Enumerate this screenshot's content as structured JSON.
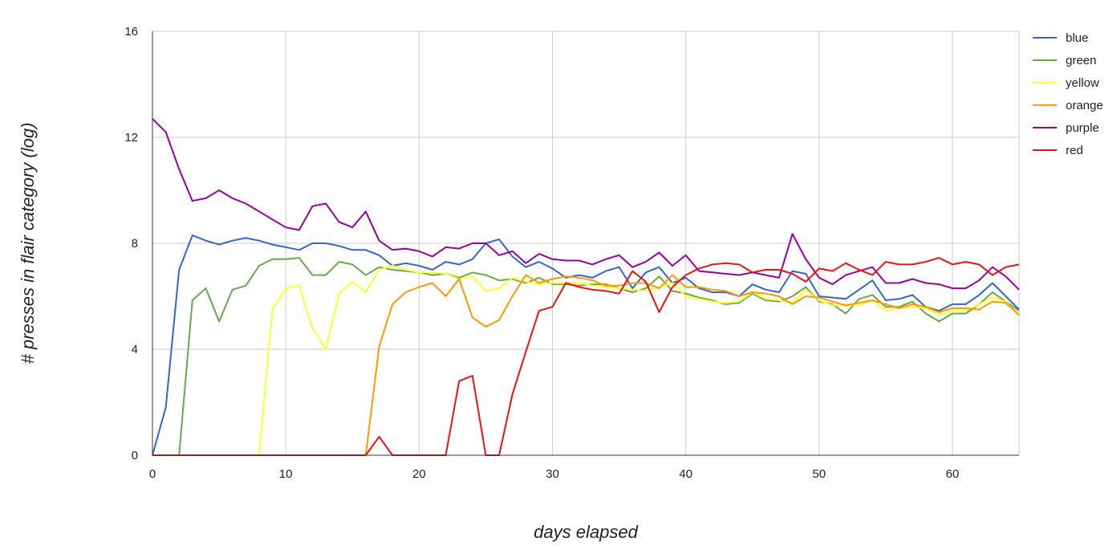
{
  "chart_data": {
    "type": "line",
    "title": "",
    "xlabel": "days elapsed",
    "ylabel": "# presses in flair category (log)",
    "xlim": [
      0,
      65
    ],
    "ylim": [
      0,
      16
    ],
    "xticks": [
      0,
      10,
      20,
      30,
      40,
      50,
      60
    ],
    "yticks": [
      0,
      4,
      8,
      12,
      16
    ],
    "grid": true,
    "legend_position": "right",
    "x": [
      0,
      1,
      2,
      3,
      4,
      5,
      6,
      7,
      8,
      9,
      10,
      11,
      12,
      13,
      14,
      15,
      16,
      17,
      18,
      19,
      20,
      21,
      22,
      23,
      24,
      25,
      26,
      27,
      28,
      29,
      30,
      31,
      32,
      33,
      34,
      35,
      36,
      37,
      38,
      39,
      40,
      41,
      42,
      43,
      44,
      45,
      46,
      47,
      48,
      49,
      50,
      51,
      52,
      53,
      54,
      55,
      56,
      57,
      58,
      59,
      60,
      61,
      62,
      63,
      64,
      65
    ],
    "series": [
      {
        "name": "blue",
        "color": "#3366cc",
        "values": [
          0,
          1.8,
          7.0,
          8.3,
          8.1,
          7.95,
          8.1,
          8.2,
          8.1,
          7.95,
          7.85,
          7.75,
          8.0,
          8.0,
          7.9,
          7.75,
          7.75,
          7.55,
          7.15,
          7.25,
          7.15,
          7.0,
          7.3,
          7.2,
          7.4,
          8.0,
          8.15,
          7.5,
          7.1,
          7.3,
          7.05,
          6.7,
          6.8,
          6.7,
          6.95,
          7.1,
          6.3,
          6.9,
          7.1,
          6.5,
          6.7,
          6.3,
          6.15,
          6.15,
          6.0,
          6.45,
          6.25,
          6.15,
          6.95,
          6.85,
          6.0,
          5.95,
          5.9,
          6.25,
          6.6,
          5.85,
          5.9,
          6.05,
          5.6,
          5.45,
          5.7,
          5.7,
          6.05,
          6.5,
          6.0,
          5.5
        ]
      },
      {
        "name": "green",
        "color": "#6aa84f",
        "values": [
          null,
          null,
          0,
          5.85,
          6.3,
          5.05,
          6.25,
          6.4,
          7.15,
          7.4,
          7.4,
          7.45,
          6.8,
          6.8,
          7.3,
          7.2,
          6.8,
          7.1,
          7.0,
          6.95,
          6.9,
          6.8,
          6.85,
          6.7,
          6.9,
          6.8,
          6.6,
          6.65,
          6.5,
          6.7,
          6.45,
          6.45,
          6.4,
          6.45,
          6.45,
          6.3,
          6.15,
          6.3,
          6.75,
          6.2,
          6.1,
          5.95,
          5.85,
          5.7,
          5.75,
          6.1,
          5.85,
          5.8,
          6.0,
          6.35,
          5.8,
          5.7,
          5.35,
          5.9,
          6.05,
          5.6,
          5.6,
          5.8,
          5.35,
          5.05,
          5.35,
          5.35,
          5.7,
          6.15,
          5.8,
          5.45
        ]
      },
      {
        "name": "yellow",
        "color": "#ffff33",
        "values": [
          null,
          null,
          null,
          null,
          null,
          null,
          null,
          null,
          0,
          5.5,
          6.3,
          6.4,
          4.8,
          4.0,
          6.1,
          6.55,
          6.15,
          7.0,
          7.15,
          7.0,
          6.9,
          6.9,
          6.85,
          6.65,
          6.75,
          6.2,
          6.3,
          6.7,
          6.55,
          6.45,
          6.5,
          6.5,
          6.5,
          6.4,
          6.35,
          6.3,
          6.25,
          6.2,
          6.35,
          6.5,
          6.0,
          5.9,
          5.8,
          5.75,
          5.8,
          6.15,
          5.9,
          5.85,
          5.75,
          6.25,
          5.85,
          5.65,
          5.7,
          5.65,
          5.85,
          5.45,
          5.55,
          5.6,
          5.55,
          5.3,
          5.45,
          5.45,
          5.7,
          5.95,
          5.8,
          5.25
        ]
      },
      {
        "name": "orange",
        "color": "#ff9900",
        "values": [
          null,
          null,
          null,
          null,
          null,
          null,
          null,
          null,
          null,
          null,
          null,
          null,
          null,
          null,
          null,
          null,
          0,
          4.1,
          5.7,
          6.15,
          6.35,
          6.5,
          6.0,
          6.65,
          5.2,
          4.85,
          5.1,
          6.0,
          6.8,
          6.5,
          6.65,
          6.75,
          6.7,
          6.6,
          6.4,
          6.4,
          6.5,
          6.5,
          6.3,
          6.8,
          6.35,
          6.35,
          6.25,
          6.2,
          6.0,
          6.15,
          6.1,
          6.0,
          5.7,
          6.0,
          5.95,
          5.8,
          5.65,
          5.75,
          5.85,
          5.7,
          5.55,
          5.7,
          5.6,
          5.4,
          5.55,
          5.55,
          5.5,
          5.8,
          5.75,
          5.3
        ]
      },
      {
        "name": "purple",
        "color": "#990099",
        "values": [
          12.7,
          12.2,
          10.8,
          9.6,
          9.7,
          10.0,
          9.7,
          9.5,
          9.2,
          8.9,
          8.6,
          8.5,
          9.4,
          9.5,
          8.8,
          8.6,
          9.2,
          8.1,
          7.75,
          7.8,
          7.7,
          7.5,
          7.85,
          7.8,
          8.0,
          8.0,
          7.55,
          7.7,
          7.25,
          7.6,
          7.4,
          7.35,
          7.35,
          7.2,
          7.4,
          7.55,
          7.1,
          7.3,
          7.65,
          7.15,
          7.55,
          6.95,
          6.9,
          6.85,
          6.8,
          6.9,
          6.8,
          6.7,
          8.35,
          7.4,
          6.7,
          6.45,
          6.8,
          6.95,
          7.1,
          6.5,
          6.5,
          6.65,
          6.5,
          6.45,
          6.3,
          6.3,
          6.6,
          7.1,
          6.75,
          6.25
        ]
      },
      {
        "name": "red",
        "color": "#ee1111",
        "values": [
          0,
          0,
          0,
          0,
          0,
          0,
          0,
          0,
          0,
          0,
          0,
          0,
          0,
          0,
          0,
          0,
          0,
          0.7,
          0,
          0,
          0,
          0,
          0,
          2.8,
          3.0,
          0,
          0,
          2.3,
          3.9,
          5.45,
          5.6,
          6.5,
          6.35,
          6.25,
          6.2,
          6.1,
          6.95,
          6.55,
          5.4,
          6.35,
          6.8,
          7.05,
          7.2,
          7.25,
          7.2,
          6.9,
          7.0,
          7.0,
          6.85,
          6.55,
          7.05,
          6.95,
          7.25,
          7.0,
          6.8,
          7.3,
          7.2,
          7.2,
          7.3,
          7.45,
          7.2,
          7.3,
          7.2,
          6.8,
          7.1,
          7.2
        ]
      }
    ]
  }
}
